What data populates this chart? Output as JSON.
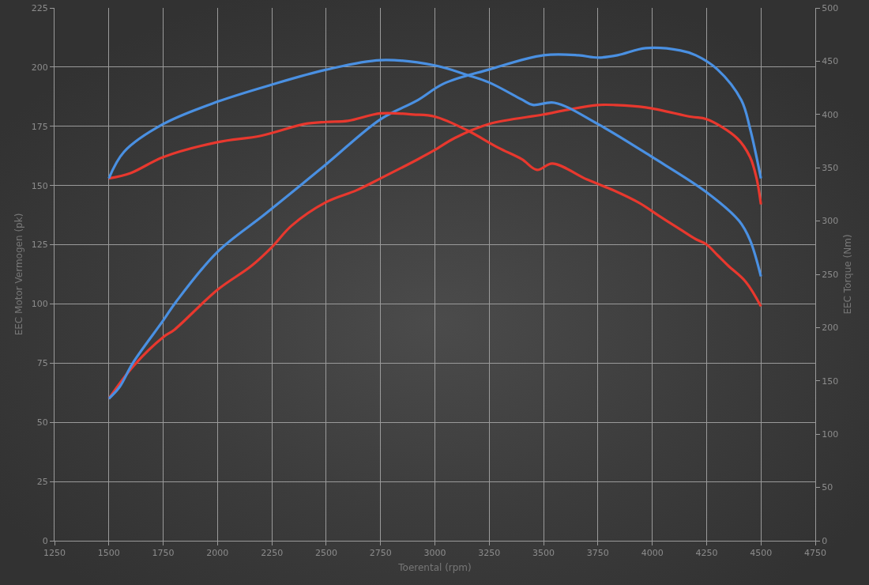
{
  "chart_data": {
    "type": "line",
    "xlabel": "Toerental (rpm)",
    "ylabel": "EEC Motor Vermogen (pk)",
    "y2label": "EEC Torque (Nm)",
    "xlim": [
      1250,
      4750
    ],
    "xticks": [
      1250,
      1500,
      1750,
      2000,
      2250,
      2500,
      2750,
      3000,
      3250,
      3500,
      3750,
      4000,
      4250,
      4500,
      4750
    ],
    "ylim": [
      0,
      225
    ],
    "yticks": [
      0,
      25,
      50,
      75,
      100,
      125,
      150,
      175,
      200,
      225
    ],
    "y2lim": [
      0,
      500
    ],
    "y2ticks": [
      0,
      50,
      100,
      150,
      200,
      250,
      300,
      350,
      400,
      450,
      500
    ],
    "grid": true,
    "line_style": "solid",
    "series": [
      {
        "color": "#e8382e",
        "x": [
          1500,
          1615,
          1750,
          1800,
          2000,
          2155,
          2250,
          2340,
          2500,
          2640,
          2750,
          2920,
          3000,
          3090,
          3250,
          3500,
          3610,
          3750,
          3830,
          3970,
          4180,
          4250,
          4390,
          4450,
          4480,
          4500
        ],
        "values": [
          60,
          74,
          86,
          89,
          106,
          116,
          124,
          133,
          143,
          148,
          153,
          161,
          165,
          170,
          176,
          180,
          182,
          184,
          184,
          183,
          179,
          178,
          170,
          162,
          153,
          142
        ]
      },
      {
        "color": "#4a90e2",
        "x": [
          1500,
          1550,
          1610,
          1750,
          1810,
          2000,
          2220,
          2500,
          2750,
          2920,
          3040,
          3250,
          3500,
          3660,
          3750,
          3840,
          3970,
          4130,
          4200,
          4300,
          4410,
          4450,
          4500
        ],
        "values": [
          60,
          65,
          75,
          93,
          101,
          122,
          138,
          159,
          178,
          186,
          193,
          199,
          205,
          205,
          204,
          205,
          208,
          207,
          205,
          199,
          186,
          174,
          153
        ]
      },
      {
        "color": "#e8382e",
        "axis": "y2",
        "x": [
          1500,
          1600,
          1750,
          2000,
          2200,
          2400,
          2500,
          2600,
          2750,
          2900,
          3000,
          3150,
          3290,
          3400,
          3470,
          3540,
          3700,
          3820,
          3940,
          4030,
          4130,
          4200,
          4250,
          4300,
          4350,
          4430,
          4500
        ],
        "values": [
          340,
          345,
          360,
          374,
          380,
          391,
          393,
          394,
          401,
          400,
          398,
          385,
          369,
          358,
          348,
          354,
          339,
          329,
          317,
          305,
          292,
          283,
          278,
          268,
          258,
          243,
          220
        ]
      },
      {
        "color": "#4a90e2",
        "axis": "y2",
        "x": [
          1500,
          1570,
          1750,
          2000,
          2250,
          2500,
          2750,
          3000,
          3150,
          3250,
          3400,
          3450,
          3550,
          3750,
          4000,
          4250,
          4400,
          4450,
          4500
        ],
        "values": [
          340,
          365,
          391,
          412,
          428,
          442,
          451,
          446,
          437,
          430,
          414,
          409,
          411,
          391,
          360,
          327,
          300,
          282,
          248
        ]
      }
    ]
  }
}
